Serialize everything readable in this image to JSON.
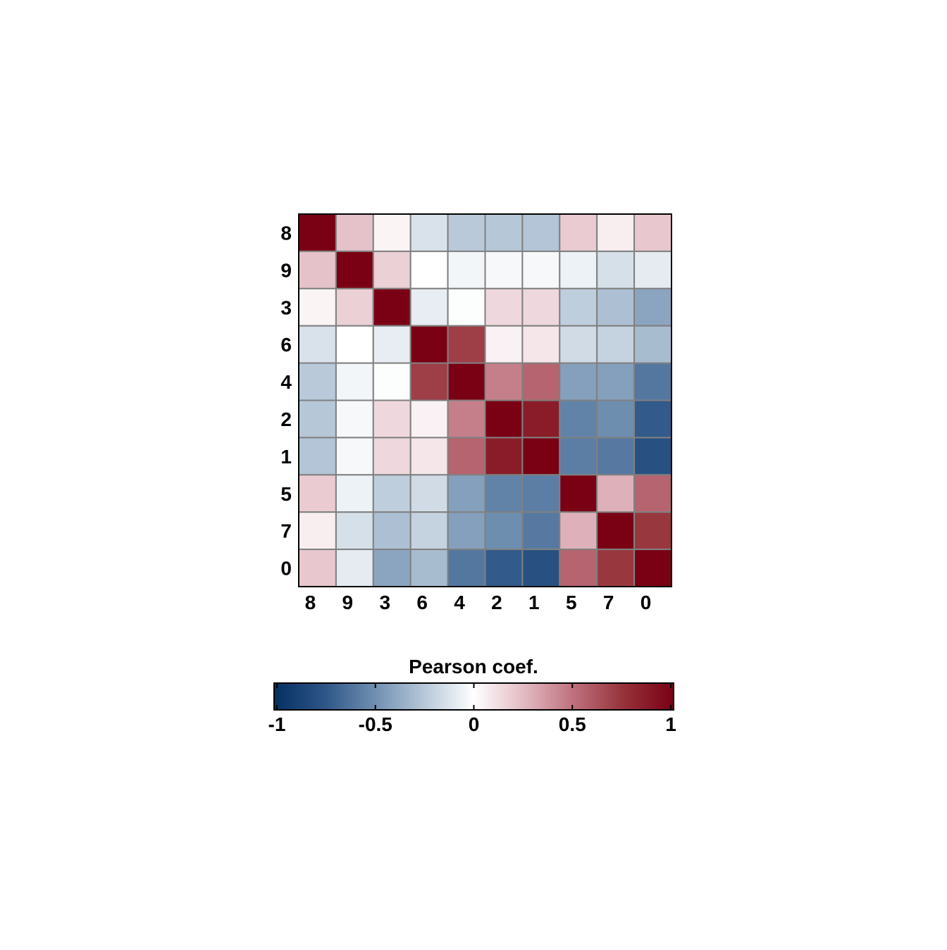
{
  "chart_data": {
    "type": "heatmap",
    "row_labels": [
      "8",
      "9",
      "3",
      "6",
      "4",
      "2",
      "1",
      "5",
      "7",
      "0"
    ],
    "col_labels": [
      "8",
      "9",
      "3",
      "6",
      "4",
      "2",
      "1",
      "5",
      "7",
      "0"
    ],
    "values": [
      [
        1.0,
        0.22,
        0.04,
        -0.13,
        -0.24,
        -0.25,
        -0.26,
        0.19,
        0.06,
        0.2
      ],
      [
        0.22,
        1.0,
        0.17,
        0.0,
        -0.04,
        -0.03,
        -0.03,
        -0.06,
        -0.14,
        -0.09
      ],
      [
        0.04,
        0.17,
        1.0,
        -0.08,
        -0.01,
        0.14,
        0.14,
        -0.22,
        -0.28,
        -0.4
      ],
      [
        -0.13,
        0.0,
        -0.08,
        1.0,
        0.7,
        0.05,
        0.09,
        -0.16,
        -0.2,
        -0.3
      ],
      [
        -0.24,
        -0.04,
        -0.01,
        0.7,
        1.0,
        0.45,
        0.55,
        -0.42,
        -0.42,
        -0.6
      ],
      [
        -0.25,
        -0.03,
        0.14,
        0.05,
        0.45,
        1.0,
        0.86,
        -0.55,
        -0.5,
        -0.73
      ],
      [
        -0.26,
        -0.03,
        0.14,
        0.09,
        0.55,
        0.86,
        1.0,
        -0.57,
        -0.59,
        -0.78
      ],
      [
        0.19,
        -0.06,
        -0.22,
        -0.16,
        -0.42,
        -0.55,
        -0.57,
        1.0,
        0.28,
        0.55
      ],
      [
        0.06,
        -0.14,
        -0.28,
        -0.2,
        -0.42,
        -0.5,
        -0.59,
        0.28,
        1.0,
        0.73
      ],
      [
        0.2,
        -0.09,
        -0.4,
        -0.3,
        -0.6,
        -0.73,
        -0.78,
        0.55,
        0.73,
        1.0
      ]
    ],
    "colorbar": {
      "title": "Pearson coef.",
      "range": [
        -1,
        1
      ],
      "ticks": [
        -1,
        -0.5,
        0,
        0.5,
        1
      ],
      "tick_labels": [
        "-1",
        "-0.5",
        "0",
        "0.5",
        "1"
      ],
      "colormap": "RdBu_r",
      "colors": {
        "negative": "#053061",
        "zero": "#ffffff",
        "positive": "#7a0014"
      }
    },
    "grid_color": "#808080"
  }
}
